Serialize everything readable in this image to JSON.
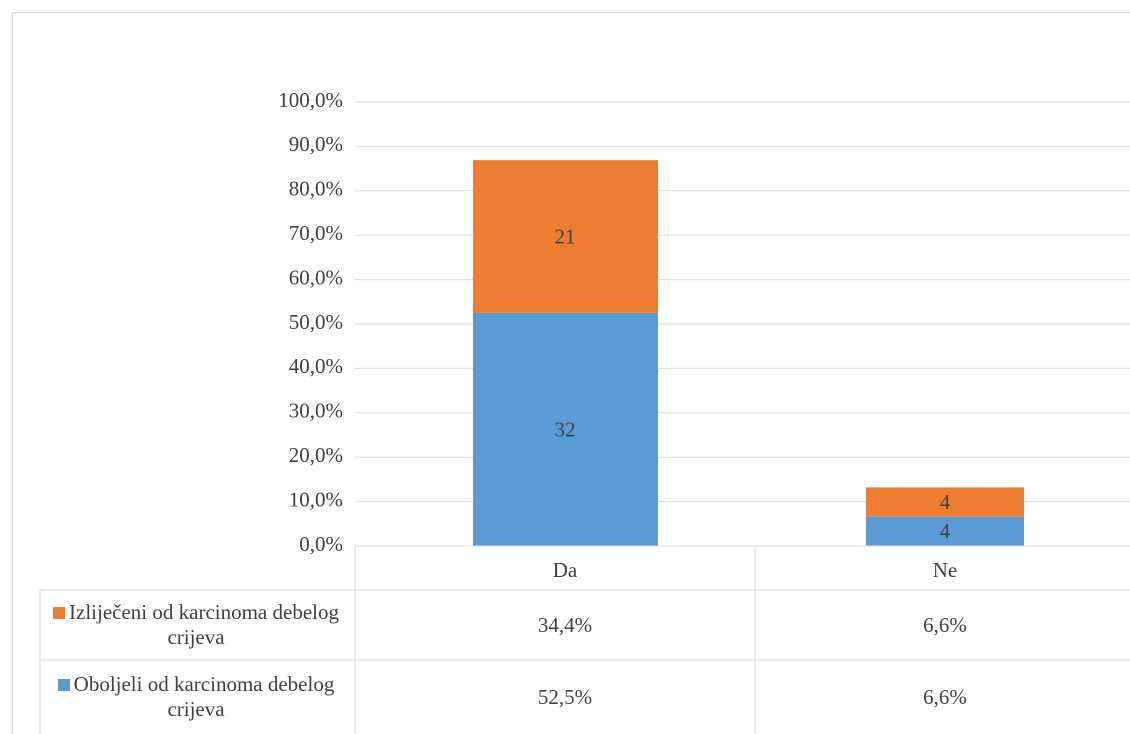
{
  "chart_data": {
    "type": "stacked_bar",
    "categories": [
      "Da",
      "Ne"
    ],
    "series": [
      {
        "name": "Oboljeli od karcinoma debelog crijeva",
        "color": "#5b9bd5",
        "values": [
          52.5,
          6.6
        ],
        "value_labels": [
          "52,5%",
          "6,6%"
        ],
        "counts": [
          32,
          4
        ]
      },
      {
        "name": "Izliječeni od karcinoma debelog crijeva",
        "color": "#ed7d31",
        "values": [
          34.4,
          6.6
        ],
        "value_labels": [
          "34,4%",
          "6,6%"
        ],
        "counts": [
          21,
          4
        ]
      }
    ],
    "ylim": [
      0,
      100
    ],
    "yticks": [
      {
        "value": 0,
        "label": "0,0%"
      },
      {
        "value": 10,
        "label": "10,0%"
      },
      {
        "value": 20,
        "label": "20,0%"
      },
      {
        "value": 30,
        "label": "30,0%"
      },
      {
        "value": 40,
        "label": "40,0%"
      },
      {
        "value": 50,
        "label": "50,0%"
      },
      {
        "value": 60,
        "label": "60,0%"
      },
      {
        "value": 70,
        "label": "70,0%"
      },
      {
        "value": 80,
        "label": "80,0%"
      },
      {
        "value": 90,
        "label": "90,0%"
      },
      {
        "value": 100,
        "label": "100,0%"
      }
    ],
    "grid": true
  }
}
